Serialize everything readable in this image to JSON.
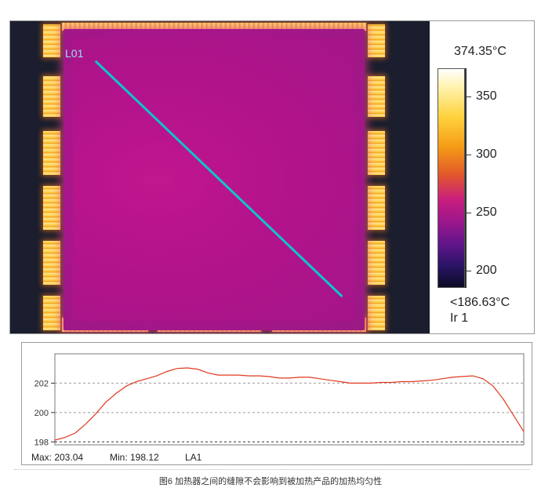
{
  "thermal": {
    "line_label": "L01",
    "scale": {
      "max_label": "374.35°C",
      "min_label": "<186.63°C",
      "name": "Ir 1",
      "ticks": [
        350,
        300,
        250,
        200
      ],
      "range": [
        186.63,
        374.35
      ]
    },
    "line": {
      "from": [
        0.205,
        0.13
      ],
      "to": [
        0.79,
        0.88
      ]
    }
  },
  "chart_data": {
    "type": "line",
    "title": "",
    "xlabel": "",
    "ylabel": "",
    "ylim": [
      197.8,
      204.0
    ],
    "yticks": [
      198,
      200,
      202
    ],
    "grid": true,
    "series": [
      {
        "name": "",
        "color": "#e03a1e",
        "values": [
          198.12,
          198.3,
          198.6,
          199.2,
          199.9,
          200.7,
          201.3,
          201.8,
          202.1,
          202.3,
          202.5,
          202.8,
          203.0,
          203.04,
          202.95,
          202.7,
          202.55,
          202.55,
          202.55,
          202.5,
          202.5,
          202.45,
          202.35,
          202.35,
          202.4,
          202.4,
          202.3,
          202.2,
          202.1,
          202.0,
          202.0,
          202.0,
          202.05,
          202.05,
          202.1,
          202.1,
          202.15,
          202.2,
          202.3,
          202.4,
          202.45,
          202.5,
          202.3,
          201.8,
          200.9,
          199.8,
          198.7
        ]
      }
    ],
    "max_label": "Max:  203.04",
    "min_label": "Min:  198.12",
    "series_label": "LA1"
  },
  "caption": "图6 加热器之间的缝隙不会影响到被加热产品的加热均匀性",
  "colors": {
    "line_profile": "#0fc3cf",
    "curve": "#e03a1e"
  }
}
